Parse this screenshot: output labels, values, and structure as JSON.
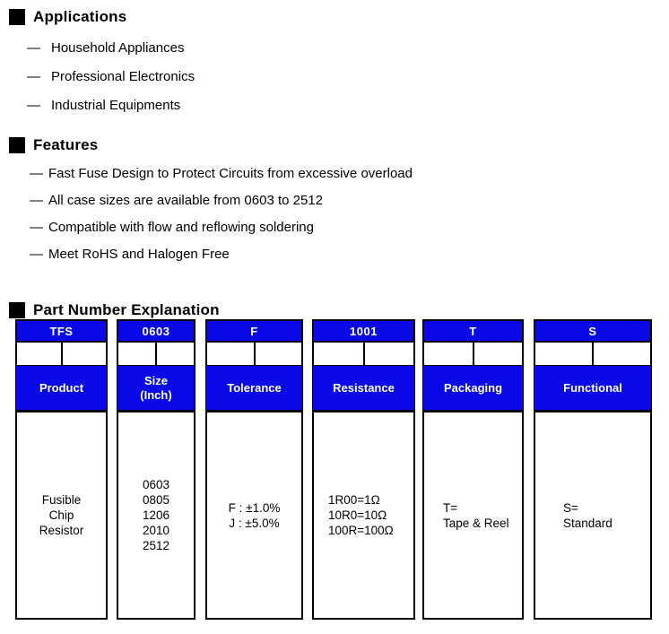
{
  "list_marker": "—",
  "colors": {
    "accent_blue": "#0909e8",
    "border_black": "#000000",
    "box_text_white": "#ffffff",
    "body_text": "#000000",
    "background": "#ffffff"
  },
  "applications": {
    "heading": "Applications",
    "items": [
      "Household Appliances",
      "Professional Electronics",
      "Industrial Equipments"
    ]
  },
  "features": {
    "heading": "Features",
    "items": [
      "Fast Fuse Design to Protect Circuits from excessive overload",
      "All case sizes are available from 0603 to 2512",
      "Compatible with flow and reflowing soldering",
      "Meet RoHS and Halogen Free"
    ]
  },
  "part_number": {
    "heading": "Part Number Explanation",
    "columns": [
      {
        "code": "TFS",
        "label": "Product",
        "content_lines": [
          "Fusible",
          "Chip",
          "Resistor"
        ]
      },
      {
        "code": "0603",
        "label": "Size\n(Inch)",
        "content_lines": [
          "0603",
          "0805",
          "1206",
          "2010",
          "2512"
        ]
      },
      {
        "code": "F",
        "label": "Tolerance",
        "content_lines": [
          "F : ±1.0%",
          "J : ±5.0%"
        ]
      },
      {
        "code": "1001",
        "label": "Resistance",
        "content_lines": [
          "1R00=1Ω",
          "10R0=10Ω",
          "100R=100Ω"
        ]
      },
      {
        "code": "T",
        "label": "Packaging",
        "content_lines": [
          "T=",
          "Tape & Reel"
        ]
      },
      {
        "code": "S",
        "label": "Functional",
        "content_lines": [
          "S=",
          "Standard"
        ]
      }
    ]
  }
}
